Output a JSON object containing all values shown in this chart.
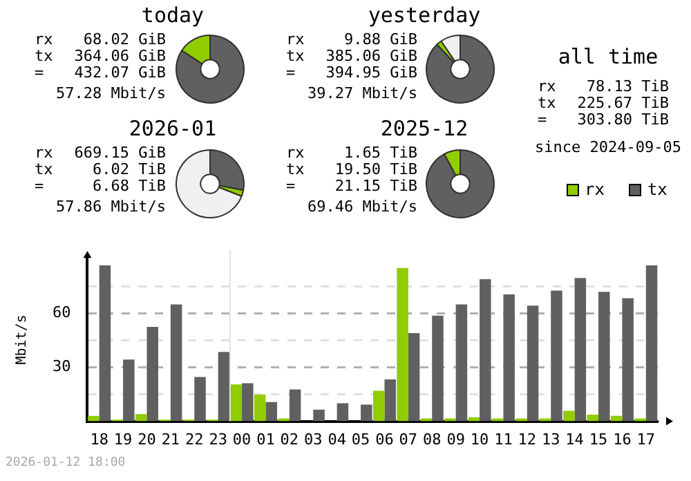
{
  "chart_data": [
    {
      "type": "donut",
      "title": "today",
      "categories": [
        null,
        null
      ],
      "values": [
        84.3,
        15.7
      ],
      "colors": [
        "#606060",
        "#90cc00"
      ],
      "annotations": [
        "rx 68.02 GiB",
        "tx 364.06 GiB",
        "= 432.07 GiB",
        "57.28 Mbit/s"
      ]
    },
    {
      "type": "donut",
      "title": "yesterday",
      "categories": [
        null,
        null,
        null
      ],
      "values": [
        88,
        2.5,
        9.5
      ],
      "colors": [
        "#606060",
        "#90cc00",
        "#f0f0f0"
      ],
      "annotations": [
        "rx 9.88 GiB",
        "tx 385.06 GiB",
        "= 394.95 GiB",
        "39.27 Mbit/s"
      ]
    },
    {
      "type": "donut",
      "title": "2026-01",
      "categories": [
        null,
        null,
        null
      ],
      "values": [
        28,
        3,
        69
      ],
      "colors": [
        "#606060",
        "#90cc00",
        "#f0f0f0"
      ],
      "annotations": [
        "rx 669.15 GiB",
        "tx 6.02 TiB",
        "= 6.68 TiB",
        "57.86 Mbit/s"
      ]
    },
    {
      "type": "donut",
      "title": "2025-12",
      "categories": [
        null,
        null
      ],
      "values": [
        92.2,
        7.8
      ],
      "colors": [
        "#606060",
        "#90cc00"
      ],
      "annotations": [
        "rx 1.65 TiB",
        "tx 19.50 TiB",
        "= 21.15 TiB",
        "69.46 Mbit/s"
      ]
    },
    {
      "type": "other",
      "title": "all time",
      "annotations": [
        "rx 78.13 TiB",
        "tx 225.67 TiB",
        "= 303.80 TiB",
        "since 2024-09-05"
      ]
    },
    {
      "type": "bar",
      "ylabel": "Mbit/s",
      "categories": [
        "18",
        "19",
        "20",
        "21",
        "22",
        "23",
        "00",
        "01",
        "02",
        "03",
        "04",
        "05",
        "06",
        "07",
        "08",
        "09",
        "10",
        "11",
        "12",
        "13",
        "14",
        "15",
        "16",
        "17"
      ],
      "series": [
        {
          "name": "rx",
          "color": "#90cc00",
          "values": [
            3.0,
            0.9,
            4.0,
            0.9,
            0.9,
            0.9,
            20.5,
            14.9,
            1.6,
            0,
            0,
            0,
            17.0,
            85.4,
            1.6,
            1.6,
            2.3,
            1.6,
            1.6,
            1.6,
            5.8,
            3.7,
            3.0,
            1.6
          ]
        },
        {
          "name": "tx",
          "color": "#606060",
          "values": [
            86.8,
            34.4,
            52.6,
            65.1,
            24.7,
            38.6,
            21.2,
            10.7,
            17.7,
            6.5,
            10.0,
            9.3,
            23.3,
            49.1,
            58.8,
            65.1,
            79.1,
            70.7,
            64.4,
            72.8,
            79.8,
            72.1,
            68.6,
            86.8
          ]
        }
      ],
      "ylim": [
        0,
        91
      ],
      "yticks": [
        {
          "value": 15,
          "label": null
        },
        30,
        {
          "value": 45,
          "label": null
        },
        60,
        {
          "value": 75,
          "label": null
        }
      ],
      "grid": "y",
      "legend": "top right",
      "ref_lines": [
        {
          "axis": "x",
          "value": "00",
          "color": "#e0e0e0"
        }
      ],
      "annotations": [
        "2026-01-12 18:00"
      ]
    }
  ]
}
